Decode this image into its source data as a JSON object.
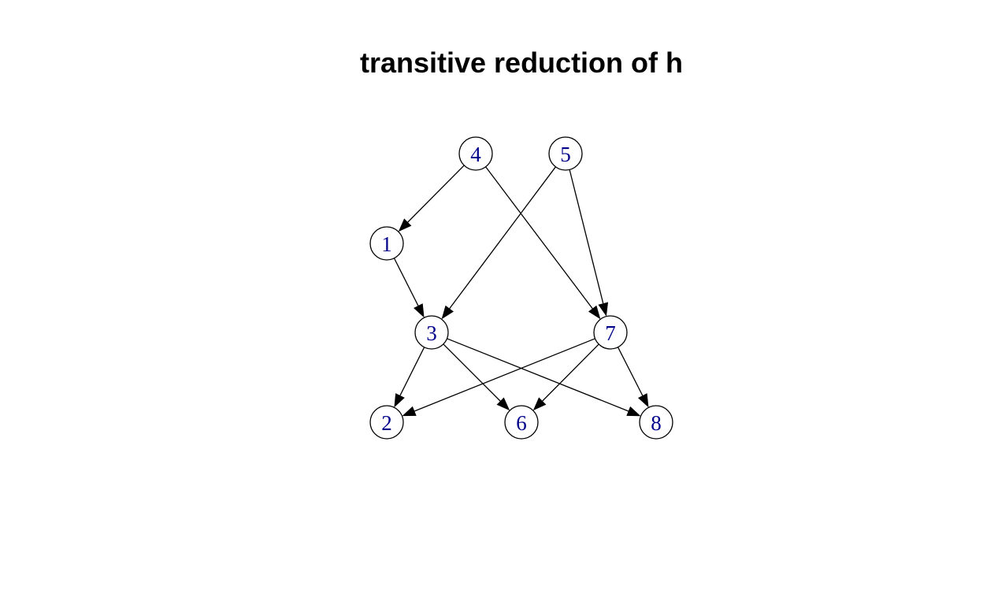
{
  "title": "transitive reduction of h",
  "colors": {
    "node_label": "#00008b",
    "edge": "#000000",
    "node_fill": "#ffffff",
    "node_border": "#000000"
  },
  "graph": {
    "nodes": [
      {
        "id": "1",
        "label": "1"
      },
      {
        "id": "2",
        "label": "2"
      },
      {
        "id": "3",
        "label": "3"
      },
      {
        "id": "4",
        "label": "4"
      },
      {
        "id": "5",
        "label": "5"
      },
      {
        "id": "6",
        "label": "6"
      },
      {
        "id": "7",
        "label": "7"
      },
      {
        "id": "8",
        "label": "8"
      }
    ],
    "edges": [
      {
        "from": "4",
        "to": "1"
      },
      {
        "from": "4",
        "to": "7"
      },
      {
        "from": "5",
        "to": "3"
      },
      {
        "from": "5",
        "to": "7"
      },
      {
        "from": "1",
        "to": "3"
      },
      {
        "from": "3",
        "to": "2"
      },
      {
        "from": "3",
        "to": "6"
      },
      {
        "from": "3",
        "to": "8"
      },
      {
        "from": "7",
        "to": "2"
      },
      {
        "from": "7",
        "to": "6"
      },
      {
        "from": "7",
        "to": "8"
      }
    ]
  }
}
